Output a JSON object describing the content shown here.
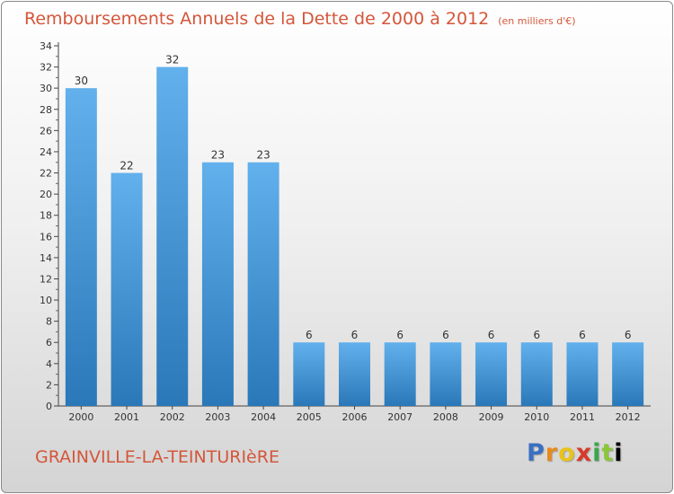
{
  "header": {
    "title": "Remboursements Annuels de la Dette de 2000 à 2012",
    "unit": "(en milliers d'€)"
  },
  "footer": {
    "town": "GRAINVILLE-LA-TEINTURIèRE",
    "logo": [
      "P",
      "r",
      "o",
      "x",
      "i",
      "t",
      "i"
    ]
  },
  "colors": {
    "title": "#d4563a",
    "bar_light": "#62b0ec",
    "bar_dark": "#2a78b8"
  },
  "chart_data": {
    "type": "bar",
    "categories": [
      "2000",
      "2001",
      "2002",
      "2003",
      "2004",
      "2005",
      "2006",
      "2007",
      "2008",
      "2009",
      "2010",
      "2011",
      "2012"
    ],
    "values": [
      30,
      22,
      32,
      23,
      23,
      6,
      6,
      6,
      6,
      6,
      6,
      6,
      6
    ],
    "ylim": [
      0,
      34
    ],
    "yticks": [
      0,
      2,
      4,
      6,
      8,
      10,
      12,
      14,
      16,
      18,
      20,
      22,
      24,
      26,
      28,
      30,
      32,
      34
    ],
    "title": "Remboursements Annuels de la Dette de 2000 à 2012",
    "xlabel": "",
    "ylabel": "",
    "grid": false
  }
}
